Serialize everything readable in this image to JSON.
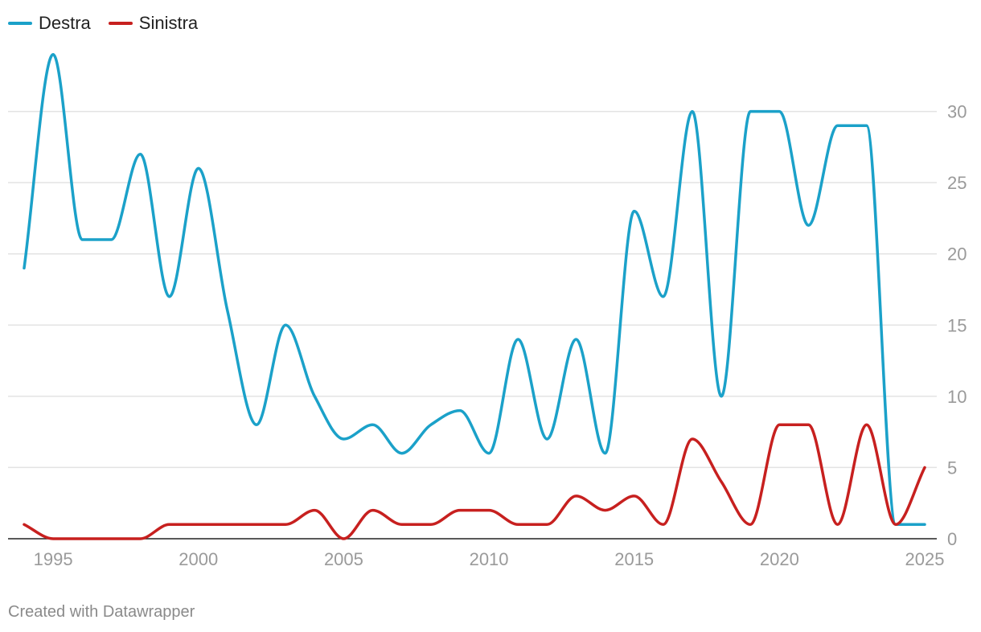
{
  "chart_data": {
    "type": "line",
    "title": "",
    "xlabel": "",
    "ylabel": "",
    "xlim": [
      1994,
      2025
    ],
    "ylim": [
      0,
      35
    ],
    "grid": true,
    "legend_position": "top-left",
    "x": [
      1994,
      1995,
      1996,
      1997,
      1998,
      1999,
      2000,
      2001,
      2002,
      2003,
      2004,
      2005,
      2006,
      2007,
      2008,
      2009,
      2010,
      2011,
      2012,
      2013,
      2014,
      2015,
      2016,
      2017,
      2018,
      2019,
      2020,
      2021,
      2022,
      2023,
      2024,
      2025
    ],
    "series": [
      {
        "name": "Destra",
        "color": "#1ba1c9",
        "values": [
          19,
          34,
          21,
          21,
          27,
          17,
          26,
          16,
          8,
          15,
          10,
          7,
          8,
          6,
          8,
          9,
          6,
          14,
          7,
          14,
          6,
          23,
          17,
          30,
          10,
          30,
          30,
          22,
          29,
          29,
          1,
          1
        ]
      },
      {
        "name": "Sinistra",
        "color": "#c7201f",
        "values": [
          1,
          0,
          0,
          0,
          0,
          1,
          1,
          1,
          1,
          1,
          2,
          0,
          2,
          1,
          1,
          2,
          2,
          1,
          1,
          3,
          2,
          3,
          1,
          7,
          4,
          1,
          8,
          8,
          1,
          8,
          1,
          5
        ]
      }
    ],
    "y_ticks": [
      "0",
      "5",
      "10",
      "15",
      "20",
      "25",
      "30"
    ],
    "x_ticks": [
      "1995",
      "2000",
      "2005",
      "2010",
      "2015",
      "2020",
      "2025"
    ]
  },
  "footer": "Created with Datawrapper"
}
